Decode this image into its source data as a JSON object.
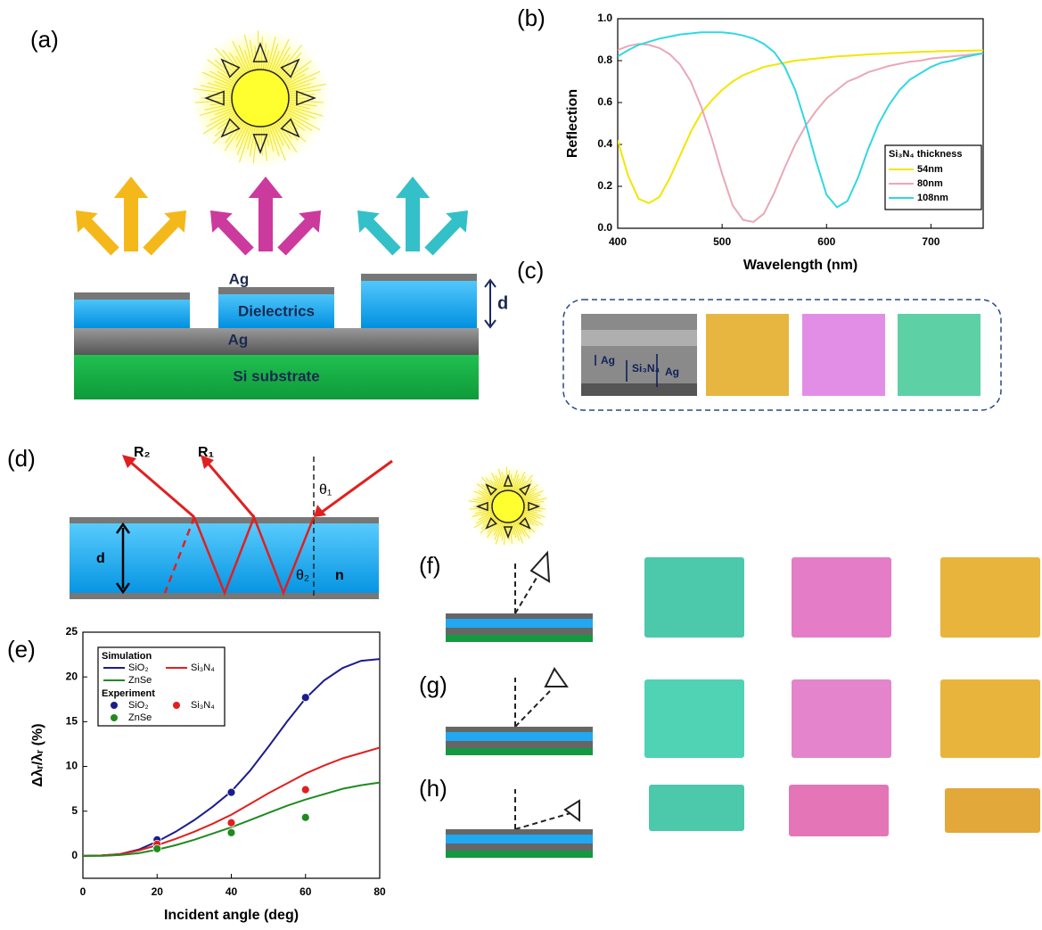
{
  "panel_labels": [
    "(a)",
    "(b)",
    "(c)",
    "(d)",
    "(e)",
    "(f)",
    "(g)",
    "(h)"
  ],
  "diagram_a": {
    "layers": [
      "Ag",
      "Dielectrics",
      "Ag",
      "Si substrate"
    ],
    "dimension": "d"
  },
  "diagram_c": {
    "labels": [
      "Ag",
      "Si₃N₄",
      "Ag"
    ]
  },
  "diagram_d": {
    "labels": [
      "R₂",
      "R₁",
      "θ₁",
      "θ₂",
      "d",
      "n"
    ]
  },
  "chart_data": [
    {
      "type": "line",
      "xlabel": "Wavelength (nm)",
      "ylabel": "Reflection",
      "legend_title": "Si₃N₄ thickness",
      "legend": "lower right",
      "xlim": [
        400,
        750
      ],
      "ylim": [
        0,
        1
      ],
      "xticks": [
        400,
        500,
        600,
        700
      ],
      "yticks": [
        {
          "value": 0,
          "label": "0.0"
        },
        0.2,
        0.4,
        0.6,
        0.8,
        {
          "value": 1,
          "label": "1.0"
        }
      ],
      "x": [
        400,
        410,
        420,
        430,
        440,
        450,
        460,
        470,
        480,
        490,
        500,
        510,
        520,
        530,
        540,
        550,
        560,
        570,
        580,
        590,
        600,
        610,
        620,
        630,
        640,
        650,
        660,
        670,
        680,
        690,
        700,
        710,
        720,
        730,
        740,
        750
      ],
      "series": [
        {
          "name": "54nm",
          "color": "#f2e600",
          "mode": "line",
          "values": [
            0.42,
            0.25,
            0.14,
            0.12,
            0.15,
            0.24,
            0.35,
            0.46,
            0.55,
            0.61,
            0.66,
            0.7,
            0.73,
            0.75,
            0.77,
            0.78,
            0.79,
            0.8,
            0.805,
            0.81,
            0.815,
            0.82,
            0.823,
            0.826,
            0.83,
            0.832,
            0.835,
            0.837,
            0.84,
            0.842,
            0.843,
            0.845,
            0.846,
            0.847,
            0.848,
            0.849
          ]
        },
        {
          "name": "80nm",
          "color": "#e8a8b8",
          "mode": "line",
          "values": [
            0.85,
            0.87,
            0.88,
            0.875,
            0.86,
            0.83,
            0.78,
            0.7,
            0.58,
            0.43,
            0.26,
            0.11,
            0.04,
            0.03,
            0.07,
            0.17,
            0.29,
            0.4,
            0.49,
            0.56,
            0.62,
            0.66,
            0.7,
            0.72,
            0.745,
            0.76,
            0.775,
            0.785,
            0.795,
            0.8,
            0.81,
            0.815,
            0.82,
            0.825,
            0.83,
            0.835
          ]
        },
        {
          "name": "108nm",
          "color": "#30d8e0",
          "mode": "line",
          "values": [
            0.82,
            0.85,
            0.875,
            0.89,
            0.905,
            0.915,
            0.925,
            0.93,
            0.935,
            0.935,
            0.935,
            0.93,
            0.92,
            0.905,
            0.88,
            0.84,
            0.77,
            0.66,
            0.5,
            0.32,
            0.16,
            0.1,
            0.13,
            0.24,
            0.38,
            0.5,
            0.59,
            0.66,
            0.71,
            0.74,
            0.77,
            0.79,
            0.8,
            0.815,
            0.825,
            0.835
          ]
        }
      ]
    },
    {
      "type": "line",
      "xlabel": "Incident angle (deg)",
      "ylabel": "Δλᵣ/λᵣ (%)",
      "legend": "upper left",
      "legend_groups": [
        "Simulation",
        "Experiment"
      ],
      "xlim": [
        0,
        80
      ],
      "ylim": [
        -2.5,
        25
      ],
      "xticks": [
        0,
        20,
        40,
        60,
        80
      ],
      "yticks": [
        0,
        5,
        10,
        15,
        20,
        25
      ],
      "series": [
        {
          "name": "SiO₂",
          "color": "#1c1c8c",
          "mode": "line",
          "x": [
            0,
            5,
            10,
            15,
            20,
            25,
            30,
            35,
            40,
            45,
            50,
            55,
            60,
            65,
            70,
            75,
            80
          ],
          "values": [
            0,
            0.05,
            0.2,
            0.7,
            1.6,
            2.7,
            4.0,
            5.5,
            7.2,
            9.5,
            12.2,
            15.0,
            17.6,
            19.6,
            21.0,
            21.8,
            22.0
          ]
        },
        {
          "name": "Si₃N₄",
          "color": "#e02020",
          "mode": "line",
          "x": [
            0,
            5,
            10,
            15,
            20,
            25,
            30,
            35,
            40,
            45,
            50,
            55,
            60,
            65,
            70,
            75,
            80
          ],
          "values": [
            0,
            0.05,
            0.2,
            0.6,
            1.2,
            1.9,
            2.7,
            3.6,
            4.6,
            5.8,
            7.0,
            8.1,
            9.2,
            10.1,
            10.9,
            11.5,
            12.1
          ]
        },
        {
          "name": "ZnSe",
          "color": "#208a20",
          "mode": "line",
          "x": [
            0,
            5,
            10,
            15,
            20,
            25,
            30,
            35,
            40,
            45,
            50,
            55,
            60,
            65,
            70,
            75,
            80
          ],
          "values": [
            0,
            0,
            0.1,
            0.3,
            0.7,
            1.2,
            1.8,
            2.5,
            3.2,
            4.0,
            4.8,
            5.6,
            6.3,
            6.9,
            7.5,
            7.9,
            8.2
          ]
        },
        {
          "name": "SiO₂",
          "color": "#1c1c8c",
          "mode": "markers",
          "x": [
            20,
            40,
            60
          ],
          "values": [
            1.8,
            7.1,
            17.7
          ]
        },
        {
          "name": "Si₃N₄",
          "color": "#e02020",
          "mode": "markers",
          "x": [
            20,
            40,
            60
          ],
          "values": [
            1.3,
            3.7,
            7.4
          ]
        },
        {
          "name": "ZnSe",
          "color": "#208a20",
          "mode": "markers",
          "x": [
            20,
            40,
            60
          ],
          "values": [
            0.8,
            2.6,
            4.3
          ]
        }
      ]
    }
  ]
}
